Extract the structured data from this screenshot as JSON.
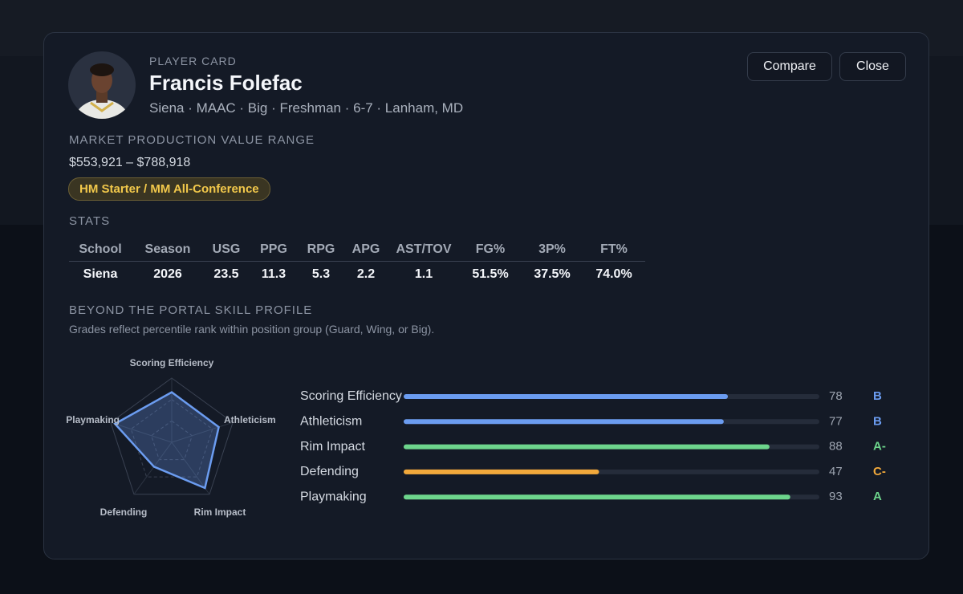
{
  "header": {
    "eyebrow": "PLAYER CARD",
    "name": "Francis Folefac",
    "subtitle": "Siena · MAAC · Big · Freshman · 6-7 · Lanham, MD"
  },
  "buttons": [
    "Compare",
    "Close"
  ],
  "market": {
    "title": "MARKET PRODUCTION VALUE RANGE",
    "range": "$553,921 – $788,918",
    "badge": "HM Starter / MM All-Conference"
  },
  "stats": {
    "title": "STATS",
    "columns": [
      "School",
      "Season",
      "USG",
      "PPG",
      "RPG",
      "APG",
      "AST/TOV",
      "FG%",
      "3P%",
      "FT%"
    ],
    "rows": [
      [
        "Siena",
        "2026",
        "23.5",
        "11.3",
        "5.3",
        "2.2",
        "1.1",
        "51.5%",
        "37.5%",
        "74.0%"
      ]
    ]
  },
  "profile": {
    "title": "BEYOND THE PORTAL SKILL PROFILE",
    "note": "Grades reflect percentile rank within position group (Guard, Wing, or Big).",
    "skills": [
      {
        "name": "Scoring Efficiency",
        "value": 78,
        "grade": "B",
        "color": "#6b9cf0"
      },
      {
        "name": "Athleticism",
        "value": 77,
        "grade": "B",
        "color": "#6b9cf0"
      },
      {
        "name": "Rim Impact",
        "value": 88,
        "grade": "A-",
        "color": "#6dd58c"
      },
      {
        "name": "Defending",
        "value": 47,
        "grade": "C-",
        "color": "#f2a93b"
      },
      {
        "name": "Playmaking",
        "value": 93,
        "grade": "A",
        "color": "#6dd58c"
      }
    ]
  }
}
